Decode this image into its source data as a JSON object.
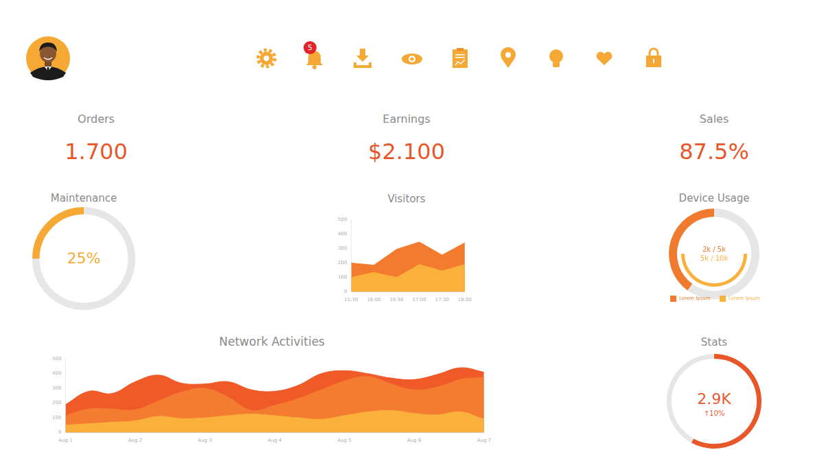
{
  "header": {
    "notifications": 5
  },
  "kpis": [
    {
      "label": "Orders",
      "value": "1.700"
    },
    {
      "label": "Earnings",
      "value": "$2.100"
    },
    {
      "label": "Sales",
      "value": "87.5%"
    }
  ],
  "chart_data": [
    {
      "type": "gauge",
      "title": "Maintenance",
      "values": [
        25
      ],
      "value_labels": [
        "25%"
      ],
      "ylim": [
        0,
        100
      ],
      "color": "#f5a833",
      "data_labels": true
    },
    {
      "type": "area",
      "title": "Visitors",
      "categories": [
        "15:30",
        "16:00",
        "16:30",
        "17:00",
        "17:30",
        "18:00"
      ],
      "series": [
        {
          "color": "#f37b2d",
          "values": [
            200,
            185,
            295,
            345,
            255,
            340
          ]
        },
        {
          "color": "#f9b13c",
          "values": [
            100,
            135,
            100,
            190,
            145,
            190
          ]
        }
      ],
      "ylim": [
        0,
        500
      ],
      "yticks": [
        0,
        100,
        200,
        300,
        400,
        500
      ],
      "grid": false,
      "line_style": "straight"
    },
    {
      "type": "nested_gauge",
      "title": "Device Usage",
      "series": [
        {
          "name": "Lorem Ipsum",
          "color": "#f07a2e",
          "values": [
            2000
          ],
          "value_labels": [
            "2k / 5k"
          ],
          "ylim": [
            0,
            5000
          ]
        },
        {
          "name": "Lorem Ipsum",
          "color": "#f9b13c",
          "values": [
            5000
          ],
          "value_labels": [
            "5k / 10k"
          ],
          "ylim": [
            0,
            10000
          ]
        }
      ],
      "legend": "bottom",
      "data_labels": true
    },
    {
      "type": "area",
      "title": "Network Activities",
      "categories": [
        "Aug 1",
        null,
        null,
        "Aug 2",
        null,
        null,
        "Aug 3",
        null,
        null,
        "Aug 4",
        null,
        null,
        "Aug 5",
        null,
        null,
        "Aug 6",
        null,
        null,
        "Aug 7"
      ],
      "series": [
        {
          "color": "#f05a28",
          "values": [
            190,
            280,
            265,
            345,
            390,
            335,
            330,
            345,
            290,
            280,
            320,
            400,
            420,
            400,
            370,
            360,
            395,
            440,
            410
          ]
        },
        {
          "color": "#f47c30",
          "values": [
            115,
            160,
            160,
            155,
            215,
            275,
            300,
            240,
            150,
            185,
            230,
            290,
            350,
            380,
            330,
            290,
            310,
            360,
            375
          ]
        },
        {
          "color": "#f9b13c",
          "values": [
            50,
            60,
            70,
            80,
            110,
            95,
            100,
            115,
            125,
            115,
            100,
            90,
            115,
            140,
            150,
            130,
            120,
            140,
            90
          ]
        }
      ],
      "ylim": [
        0,
        500
      ],
      "yticks": [
        0,
        100,
        200,
        300,
        400,
        500
      ],
      "grid": false,
      "line_style": "smooth"
    },
    {
      "type": "gauge",
      "title": "Stats",
      "values": [
        2900
      ],
      "value_labels": [
        "2.9K"
      ],
      "annotations": [
        "↑10%"
      ],
      "ylim": [
        0,
        5000
      ],
      "color": "#e8572a",
      "data_labels": true
    }
  ]
}
